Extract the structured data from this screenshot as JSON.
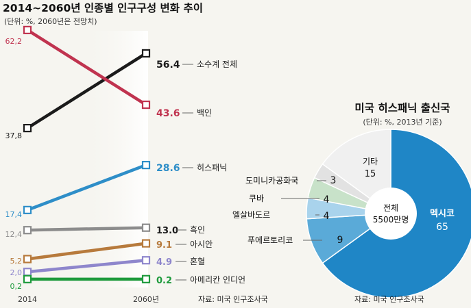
{
  "chart_data": [
    {
      "type": "line",
      "title": "2014~2060년 인종별 인구구성 변화 추이",
      "subtitle": "(단위: %, 2060년은 전망치)",
      "x": [
        "2014",
        "2060년"
      ],
      "ylim": [
        0,
        65
      ],
      "series": [
        {
          "name": "소수계 전체",
          "values": [
            37.8,
            56.4
          ],
          "labels": [
            "37,8",
            "56.4"
          ],
          "color": "#1b1b1b"
        },
        {
          "name": "백인",
          "values": [
            62.2,
            43.6
          ],
          "labels": [
            "62,2",
            "43.6"
          ],
          "color": "#c0334f"
        },
        {
          "name": "히스패닉",
          "values": [
            17.4,
            28.6
          ],
          "labels": [
            "17,4",
            "28.6"
          ],
          "color": "#2e8ec8"
        },
        {
          "name": "흑인",
          "values": [
            12.4,
            13.0
          ],
          "labels": [
            "12,4",
            "13.0"
          ],
          "color": "#8c8c8c"
        },
        {
          "name": "아시안",
          "values": [
            5.2,
            9.1
          ],
          "labels": [
            "5,2",
            "9.1"
          ],
          "color": "#b77a3c"
        },
        {
          "name": "혼혈",
          "values": [
            2.0,
            4.9
          ],
          "labels": [
            "2,0",
            "4.9"
          ],
          "color": "#8e86cc"
        },
        {
          "name": "아메리칸 인디언",
          "values": [
            0.2,
            0.2
          ],
          "labels": [
            "0,2",
            "0.2"
          ],
          "color": "#1e9a3c"
        }
      ],
      "source": "자료: 미국 인구조사국"
    },
    {
      "type": "pie",
      "title": "미국 히스패닉 출신국",
      "subtitle": "(단위: %, 2013년 기준)",
      "center_label": [
        "전체",
        "5500만명"
      ],
      "slices": [
        {
          "label": "멕시코",
          "value": 65,
          "color": "#1f86c6"
        },
        {
          "label": "푸에르토리코",
          "value": 9,
          "color": "#5aaad8"
        },
        {
          "label": "엘살바도르",
          "value": 4,
          "color": "#a9d3ec"
        },
        {
          "label": "쿠바",
          "value": 4,
          "color": "#c8e2c9"
        },
        {
          "label": "도미니카공화국",
          "value": 3,
          "color": "#e2e2e2"
        },
        {
          "label": "기타",
          "value": 15,
          "color": "#f0f0f0"
        }
      ],
      "source": "자료: 미국 인구조사국"
    }
  ]
}
